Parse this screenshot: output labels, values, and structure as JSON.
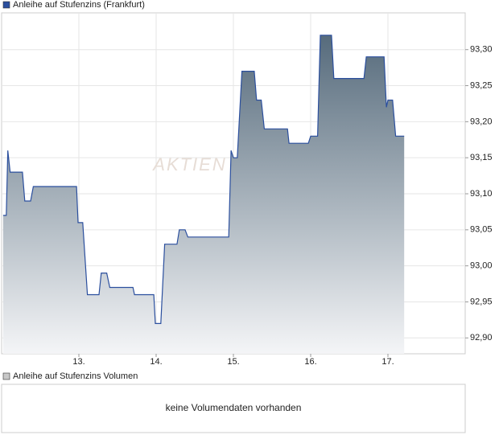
{
  "chart_data": [
    {
      "type": "area",
      "legend": "Anleihe auf Stufenzins (Frankfurt)",
      "watermark": "AKTIEN",
      "color": "#2b4f9e",
      "fill_top": "#566b7c",
      "grid": true,
      "x": [
        12.02,
        12.06,
        12.08,
        12.11,
        12.27,
        12.3,
        12.375,
        12.41,
        12.97,
        12.99,
        13.05,
        13.11,
        13.26,
        13.29,
        13.36,
        13.4,
        13.7,
        13.72,
        13.97,
        13.99,
        14.06,
        14.11,
        14.27,
        14.3,
        14.375,
        14.41,
        14.94,
        14.97,
        15.0,
        15.05,
        15.11,
        15.27,
        15.3,
        15.36,
        15.4,
        15.7,
        15.72,
        15.97,
        16.0,
        16.09,
        16.125,
        16.27,
        16.3,
        16.69,
        16.72,
        16.95,
        16.98,
        17.0,
        17.06,
        17.1,
        17.21
      ],
      "values": [
        93.07,
        93.07,
        93.16,
        93.13,
        93.13,
        93.09,
        93.09,
        93.11,
        93.11,
        93.06,
        93.06,
        92.96,
        92.96,
        92.99,
        92.99,
        92.97,
        92.97,
        92.96,
        92.96,
        92.92,
        92.92,
        93.03,
        93.03,
        93.05,
        93.05,
        93.04,
        93.04,
        93.16,
        93.15,
        93.15,
        93.27,
        93.27,
        93.23,
        93.23,
        93.19,
        93.19,
        93.17,
        93.17,
        93.18,
        93.18,
        93.32,
        93.32,
        93.26,
        93.26,
        93.29,
        93.29,
        93.22,
        93.23,
        93.23,
        93.18,
        93.18
      ],
      "xlim": [
        12.0,
        18.0
      ],
      "ylim": [
        92.878,
        93.351
      ],
      "xticks": [
        {
          "value": 13,
          "label": "13."
        },
        {
          "value": 14,
          "label": "14."
        },
        {
          "value": 15,
          "label": "15."
        },
        {
          "value": 16,
          "label": "16."
        },
        {
          "value": 17,
          "label": "17."
        }
      ],
      "yticks": [
        {
          "value": 92.9,
          "label": "92,90"
        },
        {
          "value": 92.95,
          "label": "92,95"
        },
        {
          "value": 93.0,
          "label": "93,00"
        },
        {
          "value": 93.05,
          "label": "93,05"
        },
        {
          "value": 93.1,
          "label": "93,10"
        },
        {
          "value": 93.15,
          "label": "93,15"
        },
        {
          "value": 93.2,
          "label": "93,20"
        },
        {
          "value": 93.25,
          "label": "93,25"
        },
        {
          "value": 93.3,
          "label": "93,30"
        }
      ]
    },
    {
      "type": "empty",
      "legend": "Anleihe auf Stufenzins Volumen",
      "message": "keine Volumendaten vorhanden",
      "color": "#c8c8c8"
    }
  ]
}
